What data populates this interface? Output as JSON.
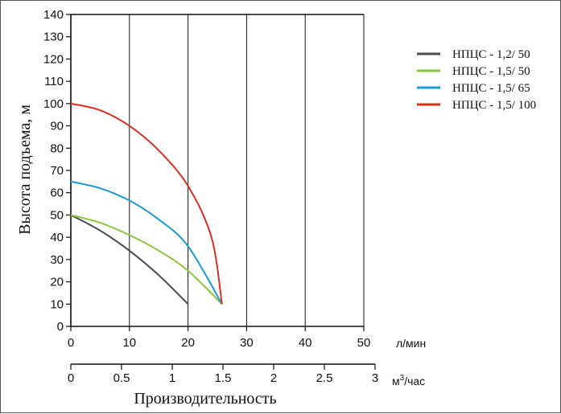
{
  "chart_data": {
    "type": "line",
    "xlabel": "Производительность",
    "ylabel": "Высота подъема, м",
    "x_unit": "л/мин",
    "x2_unit_base": "м",
    "x2_unit_sup": "3",
    "x2_unit_rest": "/час",
    "xlim": [
      0,
      50
    ],
    "ylim": [
      0,
      140
    ],
    "x_ticks": [
      0,
      10,
      20,
      30,
      40,
      50
    ],
    "y_ticks": [
      0,
      10,
      20,
      30,
      40,
      50,
      60,
      70,
      80,
      90,
      100,
      110,
      120,
      130,
      140
    ],
    "x2_ticks": [
      {
        "label": "0",
        "value": 0
      },
      {
        "label": "0.5",
        "value": 0.5
      },
      {
        "label": "1",
        "value": 1
      },
      {
        "label": "1.5",
        "value": 1.5
      },
      {
        "label": "2",
        "value": 2
      },
      {
        "label": "2.5",
        "value": 2.5
      },
      {
        "label": "3",
        "value": 3
      }
    ],
    "x2lim": [
      0,
      3
    ],
    "grid": "vertical",
    "legend_position": "top-right",
    "series": [
      {
        "name": "НПЦС - 1,2/ 50",
        "color": "#4a4a55",
        "x": [
          0,
          5,
          10,
          15,
          20
        ],
        "y": [
          50,
          43,
          34,
          23,
          10
        ]
      },
      {
        "name": "НПЦС - 1,5/ 50",
        "color": "#8dc63f",
        "x": [
          0,
          5,
          10,
          15,
          20,
          25.8
        ],
        "y": [
          50,
          46.5,
          41,
          34,
          25,
          10
        ]
      },
      {
        "name": "НПЦС - 1,5/ 65",
        "color": "#1a9ad6",
        "x": [
          0,
          5,
          10,
          15,
          20,
          25.8
        ],
        "y": [
          65,
          62,
          56.5,
          48,
          36,
          10
        ]
      },
      {
        "name": "НПЦС - 1,5/ 100",
        "color": "#d9301f",
        "x": [
          0,
          5,
          10,
          15,
          20,
          24,
          25.8
        ],
        "y": [
          100,
          97,
          90,
          79,
          63,
          40,
          10
        ]
      }
    ]
  }
}
